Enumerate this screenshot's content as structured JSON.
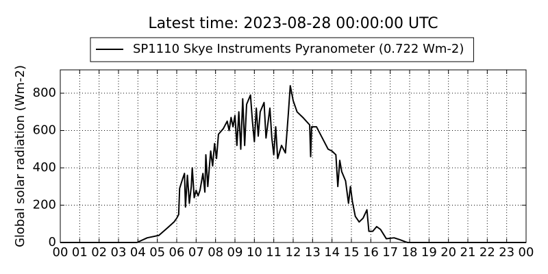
{
  "chart_data": {
    "type": "line",
    "title": "Latest time: 2023-08-28 00:00:00 UTC",
    "ylabel": "Global solar radiation (Wm-2)",
    "legend": "top",
    "grid": true,
    "xlim": [
      0,
      24
    ],
    "ylim": [
      0,
      925
    ],
    "yticks": [
      0,
      200,
      400,
      600,
      800
    ],
    "xticks": [
      {
        "value": 0,
        "label": "00"
      },
      {
        "value": 1,
        "label": "01"
      },
      {
        "value": 2,
        "label": "02"
      },
      {
        "value": 3,
        "label": "03"
      },
      {
        "value": 4,
        "label": "04"
      },
      {
        "value": 5,
        "label": "05"
      },
      {
        "value": 6,
        "label": "06"
      },
      {
        "value": 7,
        "label": "07"
      },
      {
        "value": 8,
        "label": "08"
      },
      {
        "value": 9,
        "label": "09"
      },
      {
        "value": 10,
        "label": "10"
      },
      {
        "value": 11,
        "label": "11"
      },
      {
        "value": 12,
        "label": "12"
      },
      {
        "value": 13,
        "label": "13"
      },
      {
        "value": 14,
        "label": "14"
      },
      {
        "value": 15,
        "label": "15"
      },
      {
        "value": 16,
        "label": "16"
      },
      {
        "value": 17,
        "label": "17"
      },
      {
        "value": 18,
        "label": "18"
      },
      {
        "value": 19,
        "label": "19"
      },
      {
        "value": 20,
        "label": "20"
      },
      {
        "value": 21,
        "label": "21"
      },
      {
        "value": 22,
        "label": "22"
      },
      {
        "value": 23,
        "label": "23"
      },
      {
        "value": 24,
        "label": "00"
      }
    ],
    "x": [
      0,
      3.95,
      4.48,
      5.08,
      5.54,
      5.86,
      6.0,
      6.1,
      6.15,
      6.3,
      6.4,
      6.45,
      6.55,
      6.65,
      6.75,
      6.8,
      6.9,
      7.0,
      7.1,
      7.2,
      7.35,
      7.45,
      7.5,
      7.6,
      7.75,
      7.85,
      7.95,
      8.05,
      8.15,
      8.4,
      8.6,
      8.7,
      8.8,
      8.9,
      9.0,
      9.1,
      9.2,
      9.3,
      9.4,
      9.5,
      9.6,
      9.8,
      9.9,
      10.0,
      10.1,
      10.2,
      10.3,
      10.5,
      10.6,
      10.8,
      10.9,
      11.0,
      11.1,
      11.2,
      11.4,
      11.6,
      11.75,
      11.85,
      12.0,
      12.2,
      12.5,
      12.85,
      12.9,
      12.95,
      13.2,
      13.5,
      13.8,
      14.0,
      14.2,
      14.3,
      14.4,
      14.5,
      14.7,
      14.85,
      14.95,
      15.05,
      15.2,
      15.4,
      15.6,
      15.8,
      15.9,
      16.1,
      16.3,
      16.5,
      16.8,
      17.2,
      17.5,
      17.8,
      17.9,
      24
    ],
    "series": [
      {
        "name": "SP1110 Skye Instruments Pyranometer (0.722 Wm-2)",
        "color": "#000000",
        "values": [
          0,
          0,
          25,
          38,
          80,
          110,
          130,
          150,
          290,
          340,
          370,
          190,
          360,
          210,
          300,
          400,
          240,
          280,
          250,
          280,
          370,
          270,
          470,
          300,
          490,
          410,
          530,
          450,
          580,
          610,
          650,
          600,
          670,
          620,
          680,
          520,
          700,
          500,
          770,
          520,
          740,
          790,
          650,
          540,
          720,
          570,
          700,
          750,
          560,
          720,
          560,
          470,
          620,
          450,
          520,
          480,
          690,
          840,
          760,
          700,
          670,
          630,
          460,
          620,
          620,
          560,
          500,
          490,
          470,
          300,
          440,
          380,
          330,
          210,
          300,
          220,
          140,
          110,
          130,
          175,
          60,
          60,
          85,
          70,
          20,
          25,
          15,
          3,
          0,
          0
        ]
      }
    ]
  }
}
